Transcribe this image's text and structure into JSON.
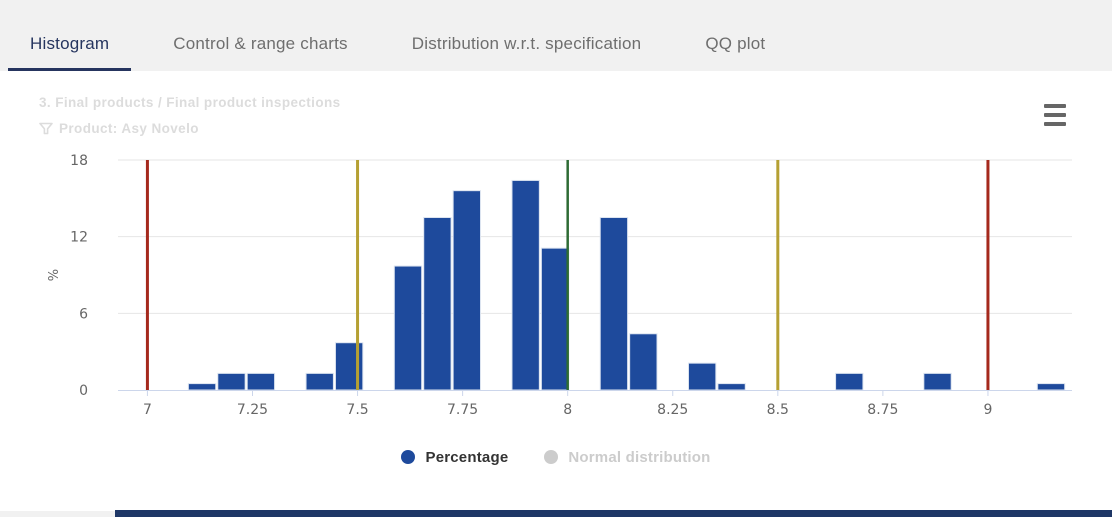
{
  "header": {
    "tabs": [
      {
        "label": "Histogram",
        "active": true
      },
      {
        "label": "Control & range charts",
        "active": false
      },
      {
        "label": "Distribution w.r.t. specification",
        "active": false
      },
      {
        "label": "QQ plot",
        "active": false
      }
    ]
  },
  "chart": {
    "title": "3. Final products / Final product inspections",
    "filter": "Product: Asy Novelo",
    "y_axis_title": "%",
    "legend": [
      {
        "label": "Percentage",
        "color": "#1e4a9c",
        "enabled": true
      },
      {
        "label": "Normal distribution",
        "color": "#cccccc",
        "enabled": false
      }
    ]
  },
  "chart_data": {
    "type": "bar",
    "title": "3. Final products / Final product inspections",
    "subtitle": "Product: Asy Novelo",
    "xlabel": "",
    "ylabel": "%",
    "ylim": [
      0,
      18
    ],
    "y_ticks": [
      0,
      6,
      12,
      18
    ],
    "x_ticks": [
      7,
      7.25,
      7.5,
      7.75,
      8,
      8.25,
      8.5,
      8.75,
      9
    ],
    "xlim": [
      6.93,
      9.2
    ],
    "bin_width": 0.07,
    "grid": true,
    "legend_position": "bottom",
    "series": [
      {
        "name": "Percentage",
        "color": "#1e4a9c",
        "visible": true,
        "bins": [
          {
            "x": 7.13,
            "y": 0.5
          },
          {
            "x": 7.2,
            "y": 1.3
          },
          {
            "x": 7.27,
            "y": 1.3
          },
          {
            "x": 7.41,
            "y": 1.3
          },
          {
            "x": 7.48,
            "y": 3.7
          },
          {
            "x": 7.62,
            "y": 9.7
          },
          {
            "x": 7.69,
            "y": 13.5
          },
          {
            "x": 7.76,
            "y": 15.6
          },
          {
            "x": 7.9,
            "y": 16.4
          },
          {
            "x": 7.97,
            "y": 11.1
          },
          {
            "x": 8.11,
            "y": 13.5
          },
          {
            "x": 8.18,
            "y": 4.4
          },
          {
            "x": 8.32,
            "y": 2.1
          },
          {
            "x": 8.39,
            "y": 0.5
          },
          {
            "x": 8.67,
            "y": 1.3
          },
          {
            "x": 8.88,
            "y": 1.3
          },
          {
            "x": 9.15,
            "y": 0.5
          }
        ]
      },
      {
        "name": "Normal distribution",
        "color": "#cccccc",
        "visible": false,
        "bins": []
      }
    ],
    "plot_lines": [
      {
        "x": 7,
        "color": "#a5291d",
        "width": 3
      },
      {
        "x": 7.5,
        "color": "#b5a033",
        "width": 3
      },
      {
        "x": 8,
        "color": "#2e6b34",
        "width": 2.5
      },
      {
        "x": 8.5,
        "color": "#b5a033",
        "width": 3
      },
      {
        "x": 9,
        "color": "#a5291d",
        "width": 3
      }
    ]
  },
  "colors": {
    "accent_navy": "#1e3766",
    "active_tab": "#26355f",
    "bar_fill": "#1e4a9c",
    "spec_limit_red": "#a5291d",
    "warning_yellow": "#b5a033",
    "target_green": "#2e6b34",
    "gridline": "#e6e6e6",
    "axis_line": "#ccd6eb",
    "faded_title": "#dcdcdc"
  }
}
